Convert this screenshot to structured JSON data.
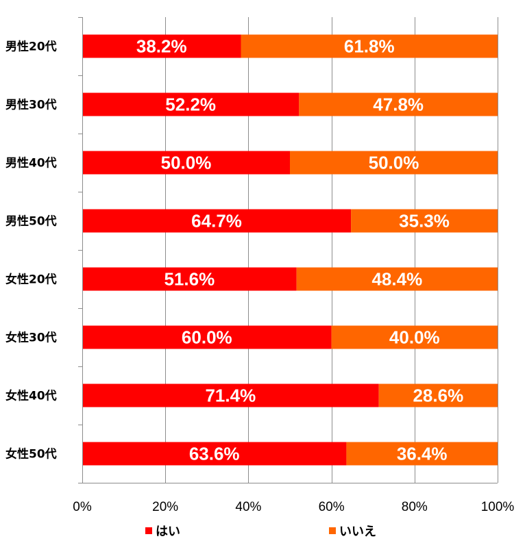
{
  "chart_data": {
    "type": "bar",
    "orientation": "horizontal",
    "stacked": true,
    "categories": [
      "男性20代",
      "男性30代",
      "男性40代",
      "男性50代",
      "女性20代",
      "女性30代",
      "女性40代",
      "女性50代"
    ],
    "series": [
      {
        "name": "はい",
        "color": "#ff0000",
        "values": [
          38.2,
          52.2,
          50.0,
          64.7,
          51.6,
          60.0,
          71.4,
          63.6
        ],
        "labels": [
          "38.2%",
          "52.2%",
          "50.0%",
          "64.7%",
          "51.6%",
          "60.0%",
          "71.4%",
          "63.6%"
        ]
      },
      {
        "name": "いいえ",
        "color": "#ff6600",
        "values": [
          61.8,
          47.8,
          50.0,
          35.3,
          48.4,
          40.0,
          28.6,
          36.4
        ],
        "labels": [
          "61.8%",
          "47.8%",
          "50.0%",
          "35.3%",
          "48.4%",
          "40.0%",
          "28.6%",
          "36.4%"
        ]
      }
    ],
    "xlim": [
      0,
      100
    ],
    "x_ticks": [
      0,
      20,
      40,
      60,
      80,
      100
    ],
    "x_tick_labels": [
      "0%",
      "20%",
      "40%",
      "60%",
      "80%",
      "100%"
    ],
    "grid": true,
    "legend_position": "bottom",
    "title": "",
    "xlabel": "",
    "ylabel": ""
  }
}
